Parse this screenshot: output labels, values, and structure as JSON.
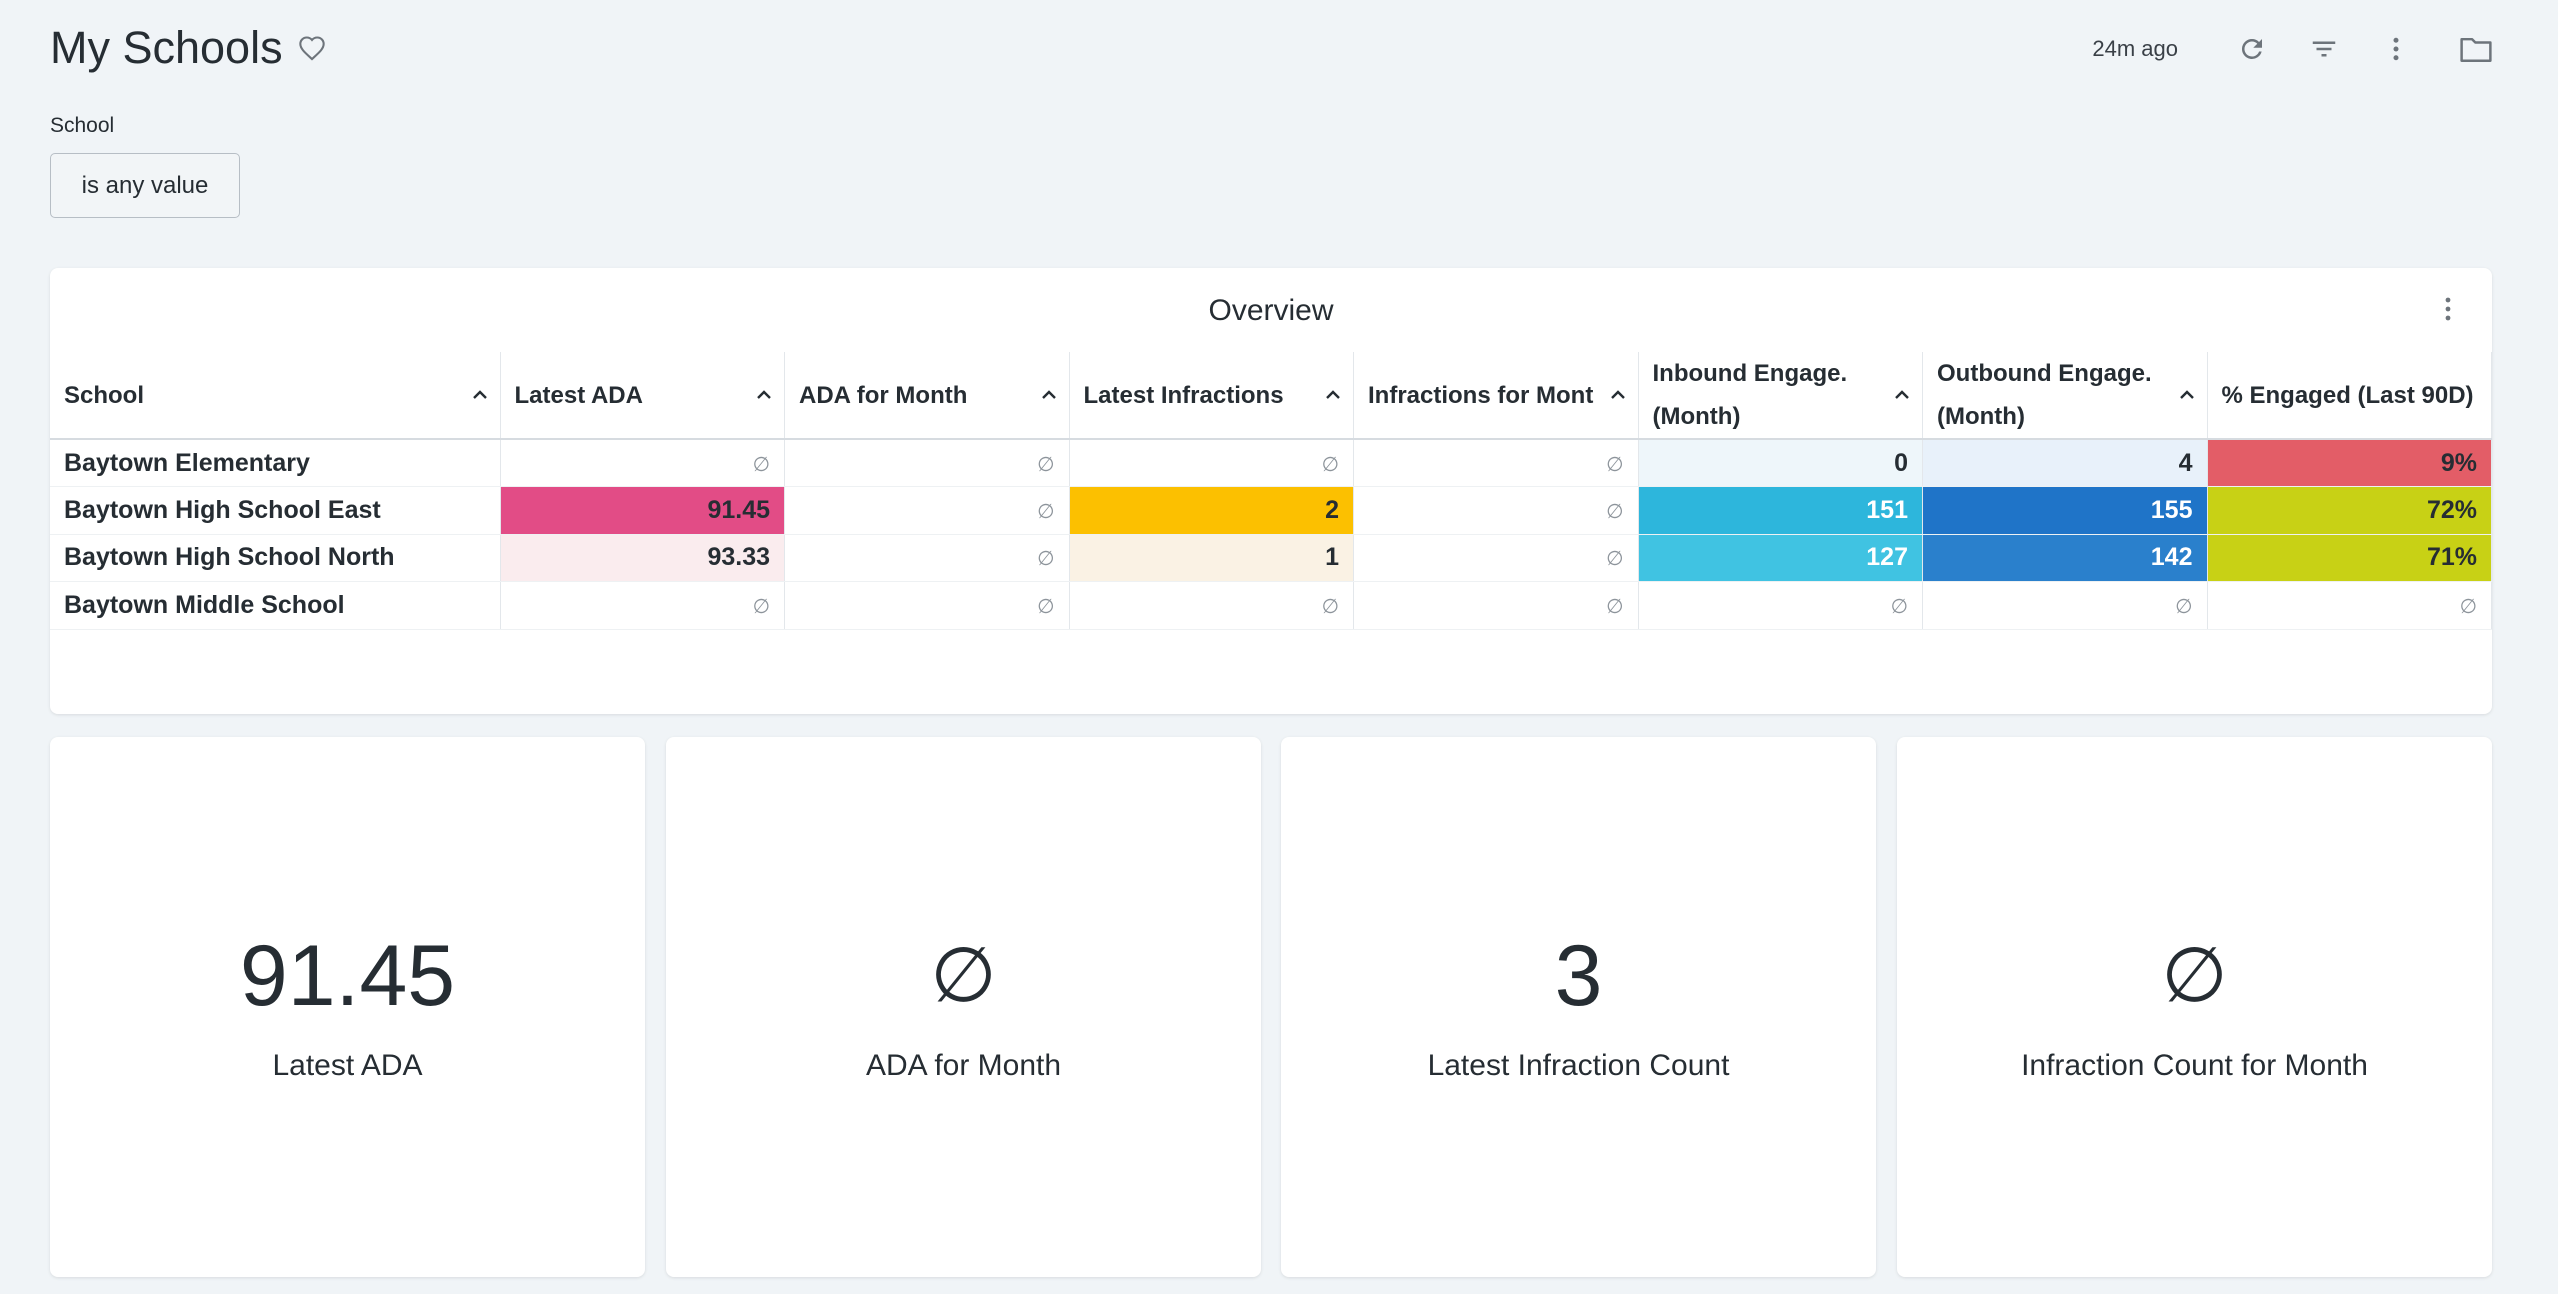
{
  "header": {
    "title": "My Schools",
    "updated": "24m ago"
  },
  "filter": {
    "label": "School",
    "value": "is any value"
  },
  "overview": {
    "title": "Overview",
    "columns": [
      {
        "label": "School"
      },
      {
        "label": "Latest ADA"
      },
      {
        "label": "ADA for Month"
      },
      {
        "label": "Latest Infractions"
      },
      {
        "label": "Infractions for Mont"
      },
      {
        "label": "Inbound Engage. (Month)"
      },
      {
        "label": "Outbound Engage. (Month)"
      },
      {
        "label": "% Engaged (Last 90D)"
      }
    ],
    "null_symbol": "∅",
    "rows": [
      {
        "school": "Baytown Elementary",
        "latest_ada": null,
        "ada_month": null,
        "latest_infractions": null,
        "infractions_month": null,
        "inbound": "0",
        "outbound": "4",
        "engaged": "9%"
      },
      {
        "school": "Baytown High School East",
        "latest_ada": "91.45",
        "ada_month": null,
        "latest_infractions": "2",
        "infractions_month": null,
        "inbound": "151",
        "outbound": "155",
        "engaged": "72%"
      },
      {
        "school": "Baytown High School North",
        "latest_ada": "93.33",
        "ada_month": null,
        "latest_infractions": "1",
        "infractions_month": null,
        "inbound": "127",
        "outbound": "142",
        "engaged": "71%"
      },
      {
        "school": "Baytown Middle School",
        "latest_ada": null,
        "ada_month": null,
        "latest_infractions": null,
        "infractions_month": null,
        "inbound": null,
        "outbound": null,
        "engaged": null
      }
    ],
    "cell_colors": {
      "0": {
        "inbound": "#eef6fa",
        "outbound": "#e8f1fa",
        "engaged": "#e35d67"
      },
      "1": {
        "latest_ada": "#e24c86",
        "latest_infractions": "#fcc000",
        "inbound": "#2db6dc",
        "outbound": "#1f74c8",
        "engaged": "#c8d115"
      },
      "2": {
        "latest_ada": "#faecee",
        "latest_infractions": "#faf2e4",
        "inbound": "#40c3e2",
        "outbound": "#2a80cc",
        "engaged": "#c8d115"
      }
    },
    "white_text_cells": {
      "1": [
        "inbound",
        "outbound"
      ],
      "2": [
        "inbound",
        "outbound"
      ]
    }
  },
  "kpis": [
    {
      "value": "91.45",
      "label": "Latest ADA"
    },
    {
      "value": "∅",
      "label": "ADA for Month",
      "is_null": true
    },
    {
      "value": "3",
      "label": "Latest Infraction Count"
    },
    {
      "value": "∅",
      "label": "Infraction Count for Month",
      "is_null": true
    }
  ]
}
